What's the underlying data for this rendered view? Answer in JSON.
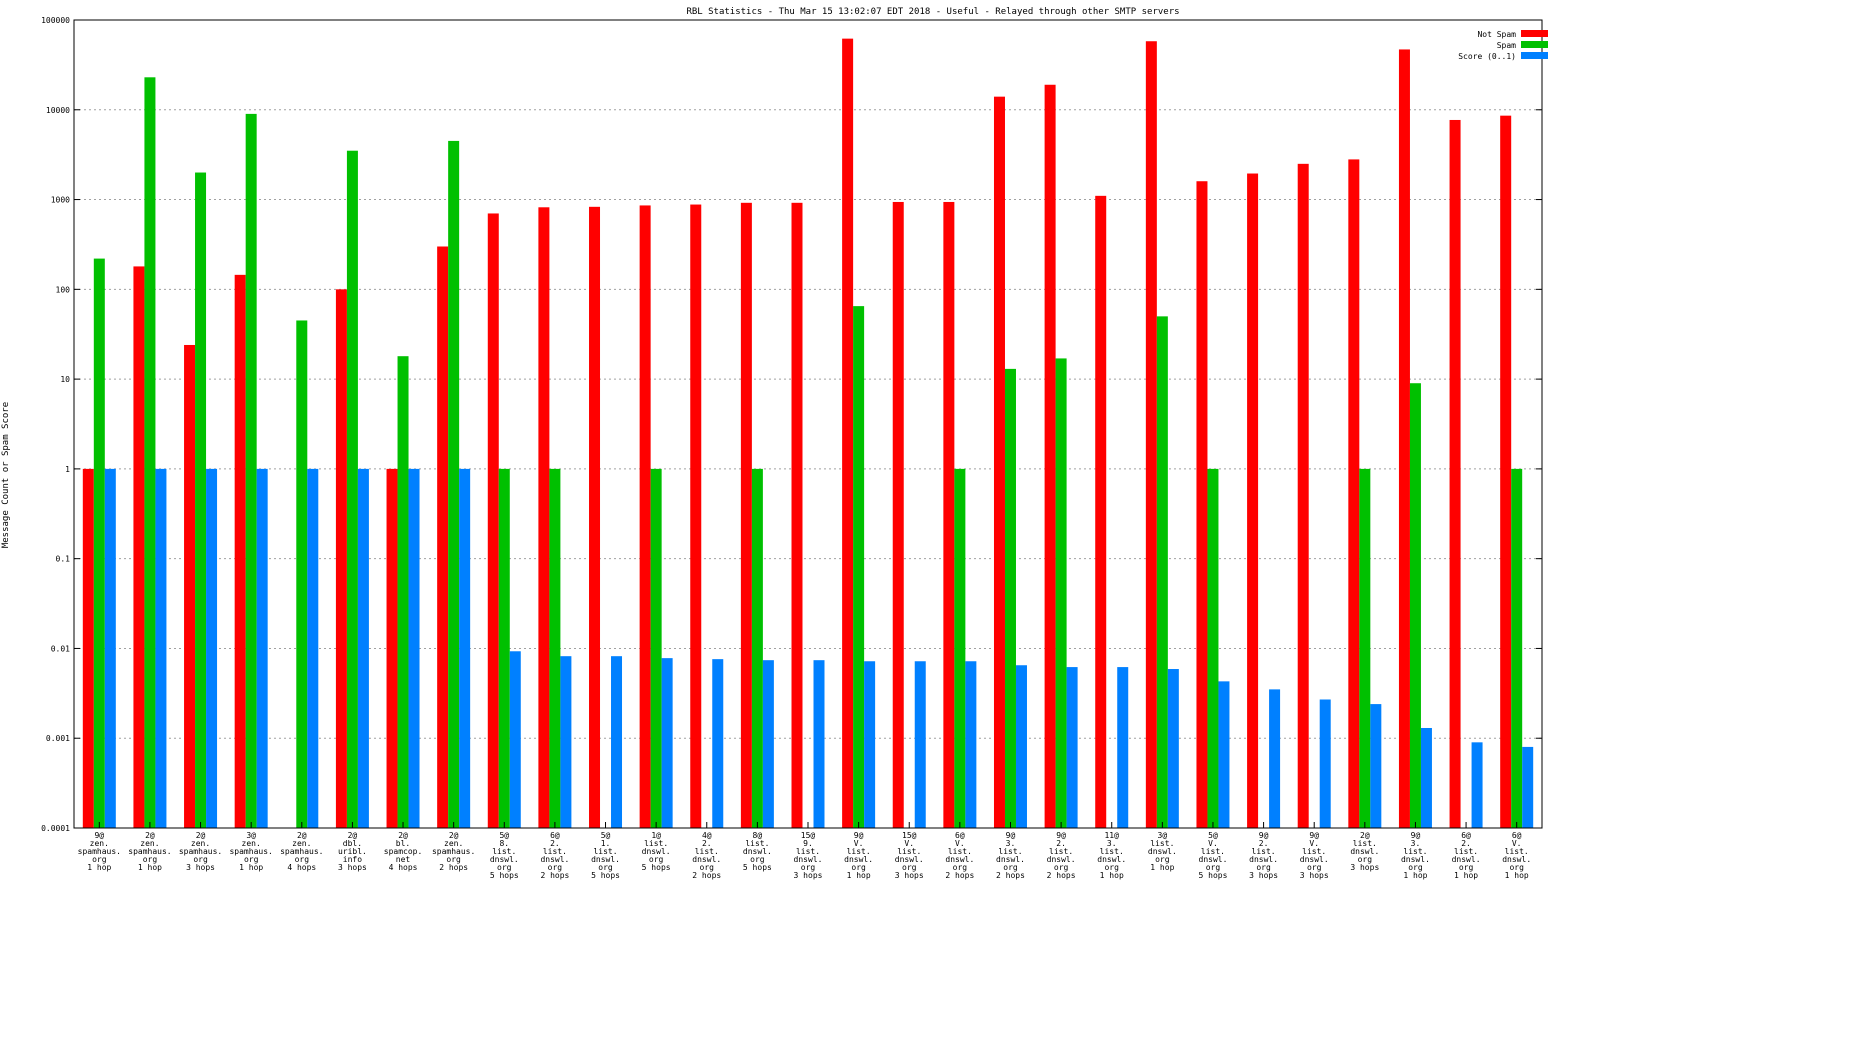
{
  "chart_data": {
    "type": "bar",
    "title": "RBL Statistics - Thu Mar 15 13:02:07 EDT 2018 - Useful - Relayed through other SMTP servers",
    "xlabel": "",
    "ylabel": "Message Count or Spam Score",
    "yscale": "log",
    "ylim": [
      0.0001,
      100000
    ],
    "yticks": [
      "0.0001",
      "0.001",
      "0.01",
      "0.1",
      "1",
      "10",
      "100",
      "1000",
      "10000",
      "100000"
    ],
    "grid": true,
    "legend_position": "top-right",
    "categories": [
      [
        "9@",
        "zen.",
        "spamhaus.",
        "org",
        "1 hop"
      ],
      [
        "2@",
        "zen.",
        "spamhaus.",
        "org",
        "1 hop"
      ],
      [
        "2@",
        "zen.",
        "spamhaus.",
        "org",
        "3 hops"
      ],
      [
        "3@",
        "zen.",
        "spamhaus.",
        "org",
        "1 hop"
      ],
      [
        "2@",
        "zen.",
        "spamhaus.",
        "org",
        "4 hops"
      ],
      [
        "2@",
        "dbl.",
        "uribl.",
        "info",
        "3 hops"
      ],
      [
        "2@",
        "bl.",
        "spamcop.",
        "net",
        "4 hops"
      ],
      [
        "2@",
        "zen.",
        "spamhaus.",
        "org",
        "2 hops"
      ],
      [
        "5@",
        "8.",
        "list.",
        "dnswl.",
        "org",
        "5 hops"
      ],
      [
        "6@",
        "2.",
        "list.",
        "dnswl.",
        "org",
        "2 hops"
      ],
      [
        "5@",
        "1.",
        "list.",
        "dnswl.",
        "org",
        "5 hops"
      ],
      [
        "1@",
        "list.",
        "dnswl.",
        "org",
        "5 hops"
      ],
      [
        "4@",
        "2.",
        "list.",
        "dnswl.",
        "org",
        "2 hops"
      ],
      [
        "8@",
        "list.",
        "dnswl.",
        "org",
        "5 hops"
      ],
      [
        "15@",
        "9.",
        "list.",
        "dnswl.",
        "org",
        "3 hops"
      ],
      [
        "9@",
        "V.",
        "list.",
        "dnswl.",
        "org",
        "1 hop"
      ],
      [
        "15@",
        "V.",
        "list.",
        "dnswl.",
        "org",
        "3 hops"
      ],
      [
        "6@",
        "V.",
        "list.",
        "dnswl.",
        "org",
        "2 hops"
      ],
      [
        "9@",
        "3.",
        "list.",
        "dnswl.",
        "org",
        "2 hops"
      ],
      [
        "9@",
        "2.",
        "list.",
        "dnswl.",
        "org",
        "2 hops"
      ],
      [
        "11@",
        "3.",
        "list.",
        "dnswl.",
        "org",
        "1 hop"
      ],
      [
        "3@",
        "list.",
        "dnswl.",
        "org",
        "1 hop"
      ],
      [
        "5@",
        "V.",
        "list.",
        "dnswl.",
        "org",
        "5 hops"
      ],
      [
        "9@",
        "2.",
        "list.",
        "dnswl.",
        "org",
        "3 hops"
      ],
      [
        "9@",
        "V.",
        "list.",
        "dnswl.",
        "org",
        "3 hops"
      ],
      [
        "2@",
        "list.",
        "dnswl.",
        "org",
        "3 hops"
      ],
      [
        "9@",
        "3.",
        "list.",
        "dnswl.",
        "org",
        "1 hop"
      ],
      [
        "6@",
        "2.",
        "list.",
        "dnswl.",
        "org",
        "1 hop"
      ],
      [
        "6@",
        "V.",
        "list.",
        "dnswl.",
        "org",
        "1 hop"
      ]
    ],
    "series": [
      {
        "name": "Not Spam",
        "color": "#ff0000",
        "values": [
          1,
          180,
          24,
          145,
          null,
          100,
          1,
          300,
          700,
          820,
          830,
          860,
          880,
          920,
          920,
          62000,
          940,
          940,
          14000,
          19000,
          1100,
          58000,
          1600,
          1950,
          2500,
          2800,
          47000,
          7700,
          8600
        ]
      },
      {
        "name": "Spam",
        "color": "#00c000",
        "values": [
          220,
          23000,
          2000,
          9000,
          45,
          3500,
          18,
          4500,
          1,
          1,
          null,
          1,
          null,
          1,
          null,
          65,
          null,
          1,
          13,
          17,
          null,
          50,
          1,
          null,
          null,
          1,
          9,
          null,
          1
        ]
      },
      {
        "name": "Score (0..1)",
        "color": "#0080ff",
        "values": [
          1,
          1,
          1,
          1,
          1,
          1,
          1,
          1,
          0.0093,
          0.0082,
          0.0082,
          0.0078,
          0.0076,
          0.0074,
          0.0074,
          0.0072,
          0.0072,
          0.0072,
          0.0065,
          0.0062,
          0.0062,
          0.0059,
          0.0043,
          0.0035,
          0.0027,
          0.0024,
          0.0013,
          0.0009,
          0.0008
        ]
      }
    ]
  }
}
